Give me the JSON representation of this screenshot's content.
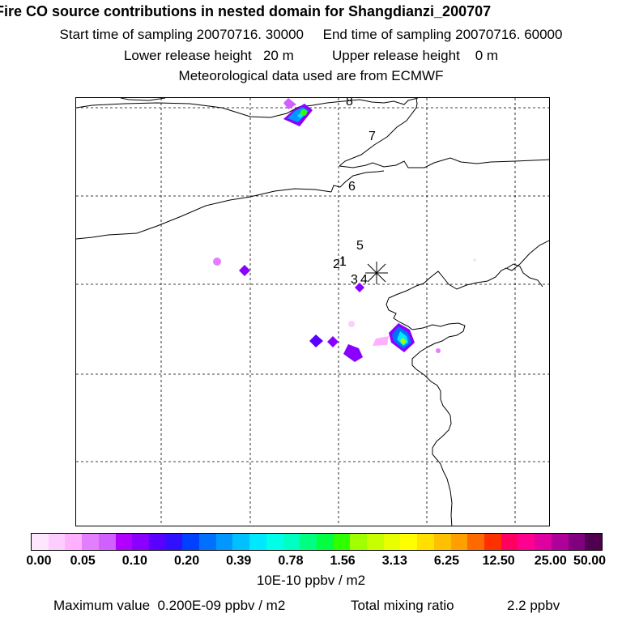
{
  "header": {
    "title": "Fire CO source contributions in nested domain for Shangdianzi_200707",
    "start_label": "Start time of sampling 20070716. 30000",
    "end_label": "End time of sampling 20070716. 60000",
    "lower_label": "Lower release height   20 m",
    "upper_label": "Upper release height    0 m",
    "met_label": "Meteorological data used are from ECMWF"
  },
  "map": {
    "labels": [
      "8",
      "7",
      "6",
      "5",
      "2",
      "1",
      "3",
      "4"
    ]
  },
  "colorbar": {
    "colors": [
      "#ffe6ff",
      "#ffccff",
      "#ffb0ff",
      "#e27eff",
      "#d060ff",
      "#b000ff",
      "#8a00ff",
      "#5a00ff",
      "#3010ff",
      "#0040ff",
      "#0070ff",
      "#0098ff",
      "#00c0ff",
      "#00e8ff",
      "#00ffe8",
      "#00ffc0",
      "#00ff80",
      "#00ff40",
      "#30ff00",
      "#a0ff00",
      "#c8ff00",
      "#e8ff00",
      "#ffff00",
      "#ffe000",
      "#ffc000",
      "#ffa000",
      "#ff6a00",
      "#ff3000",
      "#ff0060",
      "#ff0090",
      "#e000a0",
      "#b0009a",
      "#800080",
      "#500050"
    ],
    "ticks": [
      "0.00",
      "0.05",
      "0.10",
      "0.20",
      "0.39",
      "0.78",
      "1.56",
      "3.13",
      "6.25",
      "12.50",
      "25.00",
      "50.00"
    ],
    "units": "10E-10 ppbv / m2"
  },
  "footer": {
    "max_label": "Maximum value  0.200E-09 ppbv / m2",
    "total_label": "Total mixing ratio",
    "total_value": "2.2 ppbv"
  }
}
